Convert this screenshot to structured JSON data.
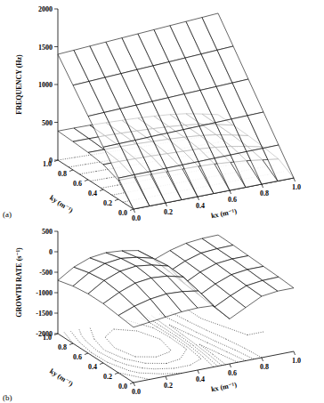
{
  "chart_data": [
    {
      "type": "surface",
      "title": "(a)",
      "x_label": "kx (m⁻¹)",
      "y_label": "ky (m⁻¹)",
      "z_label": "FREQUENCY (Hz)",
      "x": [
        0,
        0.1,
        0.2,
        0.3,
        0.4,
        0.5,
        0.6,
        0.7,
        0.8,
        0.9,
        1.0
      ],
      "y": [
        0,
        0.2,
        0.4,
        0.6,
        0.8,
        1.0
      ],
      "xlim": [
        0,
        1
      ],
      "ylim": [
        0,
        1
      ],
      "zlim": [
        0,
        2000
      ],
      "xticks": [
        {
          "value": 0,
          "label": "0.0"
        },
        {
          "value": 0.2,
          "label": "0.2"
        },
        {
          "value": 0.4,
          "label": "0.4"
        },
        {
          "value": 0.6,
          "label": "0.6"
        },
        {
          "value": 0.8,
          "label": "0.8"
        },
        {
          "value": 1,
          "label": "1.0"
        }
      ],
      "yticks": [
        {
          "value": 0,
          "label": "0.0"
        },
        {
          "value": 0.2,
          "label": "0.2"
        },
        {
          "value": 0.4,
          "label": "0.4"
        },
        {
          "value": 0.6,
          "label": "0.6"
        },
        {
          "value": 0.8,
          "label": "0.8"
        },
        {
          "value": 1,
          "label": "1.0"
        }
      ],
      "zticks": [
        0,
        500,
        1000,
        1500,
        2000
      ],
      "series": [
        {
          "color": "#000000",
          "values": [
            [
              0,
              0,
              0,
              0,
              0,
              0,
              0,
              0,
              0,
              0,
              0
            ],
            [
              280,
              283,
              285,
              288,
              290,
              293,
              296,
              298,
              301,
              303,
              306
            ],
            [
              560,
              565,
              570,
              576,
              581,
              586,
              591,
              596,
              602,
              607,
              612
            ],
            [
              840,
              848,
              856,
              863,
              871,
              879,
              887,
              895,
              902,
              910,
              918
            ],
            [
              1120,
              1130,
              1141,
              1151,
              1162,
              1172,
              1182,
              1193,
              1203,
              1214,
              1224
            ],
            [
              1400,
              1413,
              1426,
              1439,
              1452,
              1465,
              1478,
              1491,
              1504,
              1517,
              1530
            ]
          ]
        },
        {
          "color": "#000000",
          "values": [
            [
              0,
              0,
              0,
              0,
              0,
              0,
              0,
              0,
              0,
              0,
              0
            ],
            [
              250,
              250,
              245,
              240,
              235,
              230,
              220,
              200,
              180,
              150,
              120
            ],
            [
              330,
              330,
              325,
              320,
              310,
              300,
              290,
              270,
              240,
              200,
              150
            ],
            [
              360,
              358,
              355,
              350,
              340,
              330,
              315,
              295,
              265,
              220,
              170
            ],
            [
              375,
              373,
              370,
              362,
              352,
              340,
              325,
              305,
              275,
              230,
              180
            ],
            [
              385,
              383,
              380,
              372,
              362,
              350,
              335,
              315,
              285,
              240,
              190
            ]
          ]
        }
      ]
    },
    {
      "type": "surface",
      "title": "(b)",
      "x_label": "kx (m⁻¹)",
      "y_label": "ky (m⁻¹)",
      "z_label": "GROWTH RATE (s⁻¹)",
      "x": [
        0,
        0.1,
        0.2,
        0.3,
        0.4,
        0.5,
        0.6,
        0.7,
        0.8,
        0.9,
        1.0
      ],
      "y": [
        0,
        0.2,
        0.4,
        0.6,
        0.8,
        1.0
      ],
      "xlim": [
        0,
        1
      ],
      "ylim": [
        0,
        1
      ],
      "zlim": [
        -2000,
        500
      ],
      "xticks": [
        {
          "value": 0,
          "label": "0.0"
        },
        {
          "value": 0.2,
          "label": "0.2"
        },
        {
          "value": 0.4,
          "label": "0.4"
        },
        {
          "value": 0.6,
          "label": "0.6"
        },
        {
          "value": 0.8,
          "label": "0.8"
        },
        {
          "value": 1,
          "label": "1.0"
        }
      ],
      "yticks": [
        {
          "value": 0,
          "label": "0.0"
        },
        {
          "value": 0.2,
          "label": "0.2"
        },
        {
          "value": 0.4,
          "label": "0.4"
        },
        {
          "value": 0.6,
          "label": "0.6"
        },
        {
          "value": 0.8,
          "label": "0.8"
        },
        {
          "value": 1,
          "label": "1.0"
        }
      ],
      "zticks": [
        -2000,
        -1500,
        -1000,
        -500,
        0,
        500
      ],
      "series": [
        {
          "color": "#000000",
          "values": [
            [
              -650,
              -600,
              -550,
              -500,
              -480,
              -500,
              -900,
              -700,
              -500,
              -450,
              -450
            ],
            [
              -600,
              -450,
              -350,
              -300,
              -320,
              -380,
              -850,
              -650,
              -480,
              -430,
              -420
            ],
            [
              -550,
              -350,
              -200,
              -150,
              -180,
              -280,
              -800,
              -600,
              -450,
              -400,
              -400
            ],
            [
              -550,
              -300,
              -150,
              -100,
              -150,
              -250,
              -750,
              -550,
              -420,
              -380,
              -380
            ],
            [
              -600,
              -350,
              -200,
              -150,
              -200,
              -300,
              -700,
              -520,
              -400,
              -370,
              -360
            ],
            [
              -700,
              -450,
              -300,
              -250,
              -280,
              -350,
              -650,
              -500,
              -400,
              -360,
              -350
            ]
          ]
        }
      ]
    }
  ]
}
